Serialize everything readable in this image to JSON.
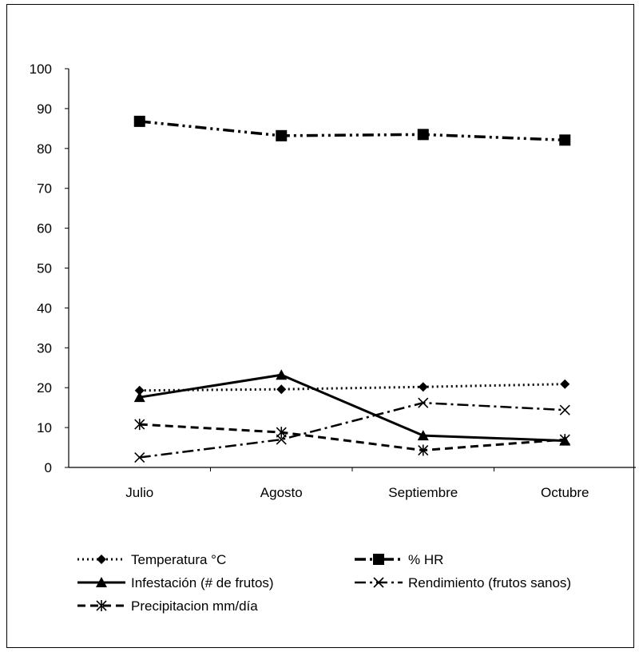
{
  "chart_data": {
    "type": "line",
    "categories": [
      "Julio",
      "Agosto",
      "Septiembre",
      "Octubre"
    ],
    "ylim": [
      0,
      100
    ],
    "yticks": [
      0,
      10,
      20,
      30,
      40,
      50,
      60,
      70,
      80,
      90,
      100
    ],
    "grid": false,
    "legend_position": "bottom",
    "series": [
      {
        "name": "Temperatura °C",
        "values": [
          19.3,
          19.6,
          20.2,
          20.9
        ],
        "line_style": "dotted",
        "marker": "diamond"
      },
      {
        "name": "% HR",
        "values": [
          86.8,
          83.2,
          83.5,
          82.1
        ],
        "line_style": "dash-dot-dot",
        "marker": "square"
      },
      {
        "name": "Infestación (# de frutos)",
        "values": [
          17.6,
          23.2,
          8.0,
          6.7
        ],
        "line_style": "solid",
        "marker": "triangle"
      },
      {
        "name": "Rendimiento (frutos sanos)",
        "values": [
          2.5,
          7.0,
          16.2,
          14.4
        ],
        "line_style": "dash-dot",
        "marker": "x"
      },
      {
        "name": "Precipitacion mm/día",
        "values": [
          10.8,
          8.8,
          4.3,
          7.0
        ],
        "line_style": "dashed",
        "marker": "star"
      }
    ]
  }
}
